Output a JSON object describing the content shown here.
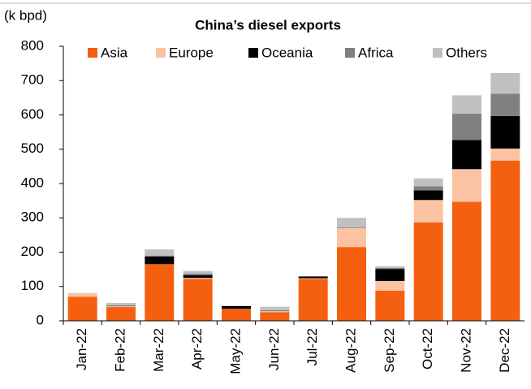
{
  "chart_data": {
    "type": "stacked_bar",
    "title": "China’s diesel exports",
    "y_label": "(k bpd)",
    "categories": [
      "Jan-22",
      "Feb-22",
      "Mar-22",
      "Apr-22",
      "May-22",
      "Jun-22",
      "Jul-22",
      "Aug-22",
      "Sep-22",
      "Oct-22",
      "Nov-22",
      "Dec-22"
    ],
    "series": [
      {
        "name": "Asia",
        "color": "#f4600f",
        "values": [
          70,
          40,
          165,
          122,
          35,
          25,
          122,
          215,
          88,
          287,
          347,
          467
        ]
      },
      {
        "name": "Europe",
        "color": "#fbc3a2",
        "values": [
          10,
          2,
          0,
          3,
          0,
          3,
          2,
          55,
          28,
          65,
          95,
          35
        ]
      },
      {
        "name": "Oceania",
        "color": "#000000",
        "values": [
          0,
          0,
          22,
          8,
          8,
          0,
          5,
          0,
          35,
          28,
          85,
          95
        ]
      },
      {
        "name": "Africa",
        "color": "#808080",
        "values": [
          0,
          3,
          3,
          5,
          0,
          3,
          0,
          2,
          3,
          12,
          77,
          65
        ]
      },
      {
        "name": "Others",
        "color": "#c0c0c0",
        "values": [
          1,
          7,
          18,
          7,
          1,
          10,
          1,
          28,
          5,
          23,
          53,
          60
        ]
      }
    ],
    "ylim": [
      0,
      800
    ],
    "yticks": [
      0,
      100,
      200,
      300,
      400,
      500,
      600,
      700,
      800
    ],
    "legend": "top"
  }
}
